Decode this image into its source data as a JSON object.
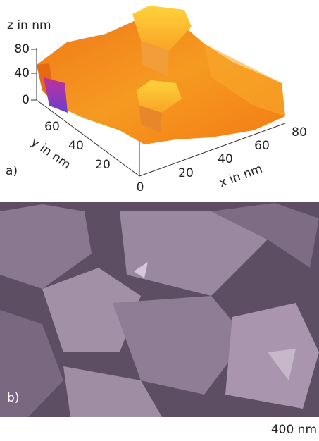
{
  "panel_a": {
    "label": "a)",
    "z_axis": {
      "title": "z in nm",
      "ticks": [
        80,
        40,
        0
      ]
    },
    "y_axis": {
      "title": "y in nm",
      "ticks": [
        60,
        40,
        20
      ]
    },
    "x_axis": {
      "title": "x in nm",
      "ticks": [
        0,
        20,
        40,
        60,
        80
      ]
    }
  },
  "panel_b": {
    "label": "b)",
    "scale_bar": "400 nm"
  }
}
